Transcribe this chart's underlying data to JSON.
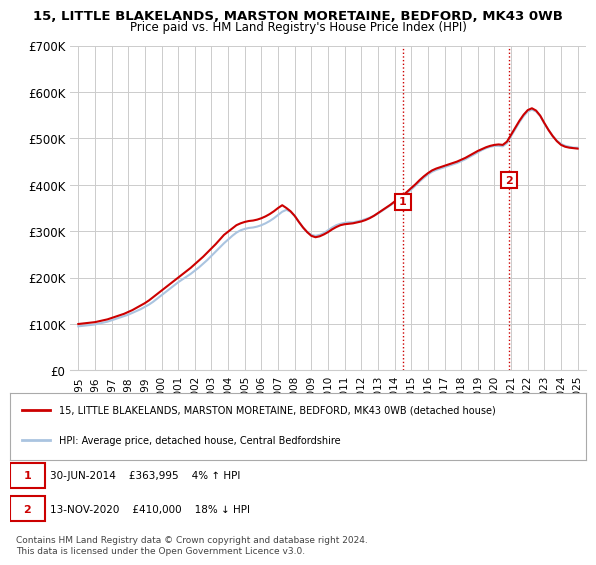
{
  "title": "15, LITTLE BLAKELANDS, MARSTON MORETAINE, BEDFORD, MK43 0WB",
  "subtitle": "Price paid vs. HM Land Registry's House Price Index (HPI)",
  "legend_line1": "15, LITTLE BLAKELANDS, MARSTON MORETAINE, BEDFORD, MK43 0WB (detached house)",
  "legend_line2": "HPI: Average price, detached house, Central Bedfordshire",
  "footnote": "Contains HM Land Registry data © Crown copyright and database right 2024.\nThis data is licensed under the Open Government Licence v3.0.",
  "sale1_date": 2014.5,
  "sale1_label": "1",
  "sale1_price": 363995,
  "sale1_text": "30-JUN-2014    £363,995    4% ↑ HPI",
  "sale2_date": 2020.87,
  "sale2_label": "2",
  "sale2_price": 410000,
  "sale2_text": "13-NOV-2020    £410,000    18% ↓ HPI",
  "ylim": [
    0,
    700000
  ],
  "xlim": [
    1994.5,
    2025.5
  ],
  "yticks": [
    0,
    100000,
    200000,
    300000,
    400000,
    500000,
    600000,
    700000
  ],
  "ytick_labels": [
    "£0",
    "£100K",
    "£200K",
    "£300K",
    "£400K",
    "£500K",
    "£600K",
    "£700K"
  ],
  "xticks": [
    1995,
    1996,
    1997,
    1998,
    1999,
    2000,
    2001,
    2002,
    2003,
    2004,
    2005,
    2006,
    2007,
    2008,
    2009,
    2010,
    2011,
    2012,
    2013,
    2014,
    2015,
    2016,
    2017,
    2018,
    2019,
    2020,
    2021,
    2022,
    2023,
    2024,
    2025
  ],
  "hpi_color": "#aac4e0",
  "property_color": "#cc0000",
  "sale_marker_color": "#cc0000",
  "dashed_line_color": "#cc0000",
  "background_color": "#ffffff",
  "grid_color": "#cccccc",
  "hpi_x": [
    1995,
    1995.25,
    1995.5,
    1995.75,
    1996,
    1996.25,
    1996.5,
    1996.75,
    1997,
    1997.25,
    1997.5,
    1997.75,
    1998,
    1998.25,
    1998.5,
    1998.75,
    1999,
    1999.25,
    1999.5,
    1999.75,
    2000,
    2000.25,
    2000.5,
    2000.75,
    2001,
    2001.25,
    2001.5,
    2001.75,
    2002,
    2002.25,
    2002.5,
    2002.75,
    2003,
    2003.25,
    2003.5,
    2003.75,
    2004,
    2004.25,
    2004.5,
    2004.75,
    2005,
    2005.25,
    2005.5,
    2005.75,
    2006,
    2006.25,
    2006.5,
    2006.75,
    2007,
    2007.25,
    2007.5,
    2007.75,
    2008,
    2008.25,
    2008.5,
    2008.75,
    2009,
    2009.25,
    2009.5,
    2009.75,
    2010,
    2010.25,
    2010.5,
    2010.75,
    2011,
    2011.25,
    2011.5,
    2011.75,
    2012,
    2012.25,
    2012.5,
    2012.75,
    2013,
    2013.25,
    2013.5,
    2013.75,
    2014,
    2014.25,
    2014.5,
    2014.75,
    2015,
    2015.25,
    2015.5,
    2015.75,
    2016,
    2016.25,
    2016.5,
    2016.75,
    2017,
    2017.25,
    2017.5,
    2017.75,
    2018,
    2018.25,
    2018.5,
    2018.75,
    2019,
    2019.25,
    2019.5,
    2019.75,
    2020,
    2020.25,
    2020.5,
    2020.75,
    2021,
    2021.25,
    2021.5,
    2021.75,
    2022,
    2022.25,
    2022.5,
    2022.75,
    2023,
    2023.25,
    2023.5,
    2023.75,
    2024,
    2024.25,
    2024.5,
    2024.75,
    2025
  ],
  "hpi_y": [
    95000,
    96000,
    97000,
    98000,
    99000,
    101000,
    103000,
    105000,
    108000,
    111000,
    114000,
    117000,
    120000,
    124000,
    128000,
    132000,
    137000,
    142000,
    148000,
    155000,
    162000,
    169000,
    176000,
    183000,
    190000,
    196000,
    202000,
    208000,
    215000,
    222000,
    230000,
    238000,
    247000,
    256000,
    265000,
    274000,
    282000,
    290000,
    297000,
    302000,
    305000,
    307000,
    308000,
    310000,
    313000,
    317000,
    322000,
    328000,
    335000,
    342000,
    346000,
    342000,
    333000,
    320000,
    308000,
    298000,
    292000,
    290000,
    292000,
    296000,
    302000,
    308000,
    313000,
    316000,
    318000,
    319000,
    319000,
    321000,
    323000,
    326000,
    329000,
    333000,
    338000,
    344000,
    350000,
    356000,
    362000,
    368000,
    375000,
    382000,
    390000,
    398000,
    407000,
    415000,
    422000,
    428000,
    432000,
    435000,
    438000,
    441000,
    444000,
    447000,
    451000,
    455000,
    460000,
    465000,
    470000,
    475000,
    479000,
    482000,
    484000,
    484000,
    483000,
    490000,
    505000,
    520000,
    535000,
    548000,
    558000,
    562000,
    558000,
    548000,
    532000,
    518000,
    505000,
    495000,
    488000,
    484000,
    482000,
    480000,
    480000
  ],
  "prop_x": [
    1995,
    1995.25,
    1995.5,
    1995.75,
    1996,
    1996.25,
    1996.5,
    1996.75,
    1997,
    1997.25,
    1997.5,
    1997.75,
    1998,
    1998.25,
    1998.5,
    1998.75,
    1999,
    1999.25,
    1999.5,
    1999.75,
    2000,
    2000.25,
    2000.5,
    2000.75,
    2001,
    2001.25,
    2001.5,
    2001.75,
    2002,
    2002.25,
    2002.5,
    2002.75,
    2003,
    2003.25,
    2003.5,
    2003.75,
    2004,
    2004.25,
    2004.5,
    2004.75,
    2005,
    2005.25,
    2005.5,
    2005.75,
    2006,
    2006.25,
    2006.5,
    2006.75,
    2007,
    2007.25,
    2007.5,
    2007.75,
    2008,
    2008.25,
    2008.5,
    2008.75,
    2009,
    2009.25,
    2009.5,
    2009.75,
    2010,
    2010.25,
    2010.5,
    2010.75,
    2011,
    2011.25,
    2011.5,
    2011.75,
    2012,
    2012.25,
    2012.5,
    2012.75,
    2013,
    2013.25,
    2013.5,
    2013.75,
    2014,
    2014.25,
    2014.5,
    2014.75,
    2015,
    2015.25,
    2015.5,
    2015.75,
    2016,
    2016.25,
    2016.5,
    2016.75,
    2017,
    2017.25,
    2017.5,
    2017.75,
    2018,
    2018.25,
    2018.5,
    2018.75,
    2019,
    2019.25,
    2019.5,
    2019.75,
    2020,
    2020.25,
    2020.5,
    2020.75,
    2021,
    2021.25,
    2021.5,
    2021.75,
    2022,
    2022.25,
    2022.5,
    2022.75,
    2023,
    2023.25,
    2023.5,
    2023.75,
    2024,
    2024.25,
    2024.5,
    2024.75,
    2025
  ],
  "prop_y": [
    100000,
    101000,
    102000,
    103000,
    104000,
    106000,
    108000,
    110000,
    113000,
    116000,
    119000,
    122000,
    126000,
    130000,
    135000,
    140000,
    145000,
    151000,
    158000,
    165000,
    172000,
    179000,
    186000,
    193000,
    200000,
    207000,
    214000,
    221000,
    229000,
    237000,
    245000,
    254000,
    263000,
    272000,
    282000,
    292000,
    299000,
    306000,
    313000,
    317000,
    320000,
    322000,
    323000,
    325000,
    328000,
    332000,
    337000,
    343000,
    350000,
    356000,
    350000,
    343000,
    333000,
    320000,
    308000,
    298000,
    290000,
    287000,
    289000,
    293000,
    298000,
    304000,
    309000,
    313000,
    315000,
    316000,
    317000,
    319000,
    321000,
    324000,
    328000,
    333000,
    339000,
    345000,
    351000,
    357000,
    363995,
    370000,
    377000,
    385000,
    393000,
    401000,
    410000,
    418000,
    425000,
    431000,
    435000,
    438000,
    441000,
    444000,
    447000,
    450000,
    454000,
    458000,
    463000,
    468000,
    473000,
    477000,
    481000,
    484000,
    486000,
    487000,
    486000,
    493000,
    508000,
    523000,
    538000,
    551000,
    561000,
    565000,
    560000,
    549000,
    533000,
    518000,
    505000,
    494000,
    486000,
    482000,
    480000,
    479000,
    478000
  ]
}
